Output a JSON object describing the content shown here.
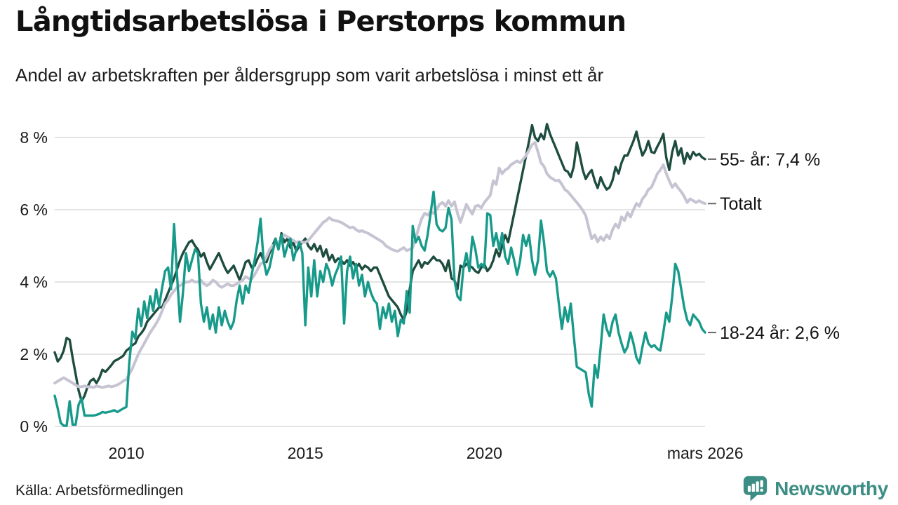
{
  "header": {
    "title": "Långtidsarbetslösa i Perstorps kommun",
    "subtitle": "Andel av arbetskraften per åldersgrupp som varit arbetslösa i minst ett år"
  },
  "footer": {
    "source": "Källa: Arbetsförmedlingen",
    "brand": "Newsworthy",
    "brand_color": "#3c8d84"
  },
  "chart_data": {
    "type": "line",
    "title": "Långtidsarbetslösa i Perstorps kommun",
    "subtitle": "Andel av arbetskraften per åldersgrupp som varit arbetslösa i minst ett år",
    "unit": "%",
    "frequency": "monthly",
    "start": "2008-01",
    "end": "2026-03",
    "ylim": [
      0,
      8.6
    ],
    "grid": "horizontal",
    "legend_position": "right-edge-labels",
    "style": {
      "grid_color": "#dcdcdc",
      "callout_dash_color": "#666666",
      "text_color": "#1a1a1a"
    },
    "y_ticks": [
      {
        "label": "0 %",
        "value": 0
      },
      {
        "label": "2 %",
        "value": 2
      },
      {
        "label": "4 %",
        "value": 4
      },
      {
        "label": "6 %",
        "value": 6
      },
      {
        "label": "8 %",
        "value": 8
      }
    ],
    "x_ticks": [
      {
        "label": "2010",
        "pos": 2010
      },
      {
        "label": "2015",
        "pos": 2015
      },
      {
        "label": "2020",
        "pos": 2020
      },
      {
        "label": "mars 2026",
        "pos": 2026.17
      }
    ],
    "series": [
      {
        "id": "55-ar",
        "name": "55- år",
        "label": "55- år: 7,4 %",
        "latest_value": "7,4 %",
        "color": "#1e4d40",
        "stroke_width": 3.4,
        "values": [
          2.05,
          1.8,
          1.9,
          2.1,
          2.45,
          2.4,
          1.9,
          1.45,
          1.0,
          0.7,
          0.85,
          1.1,
          1.26,
          1.32,
          1.2,
          1.35,
          1.57,
          1.51,
          1.6,
          1.7,
          1.81,
          1.85,
          1.9,
          1.96,
          2.1,
          2.16,
          2.25,
          2.3,
          2.49,
          2.58,
          2.7,
          2.9,
          3.0,
          3.1,
          3.2,
          3.3,
          3.3,
          3.5,
          3.7,
          3.9,
          4.1,
          4.35,
          4.6,
          4.8,
          4.95,
          5.1,
          5.15,
          5.0,
          4.9,
          4.7,
          4.8,
          4.55,
          4.35,
          4.5,
          4.65,
          4.8,
          4.6,
          4.4,
          4.25,
          4.35,
          4.45,
          4.25,
          4.05,
          4.3,
          4.55,
          4.6,
          4.4,
          4.45,
          4.65,
          4.8,
          4.6,
          4.55,
          4.8,
          5.0,
          5.2,
          4.9,
          5.35,
          5.1,
          5.2,
          4.95,
          5.1,
          4.85,
          5.0,
          5.1,
          5.2,
          5.0,
          4.9,
          5.05,
          4.85,
          5.0,
          4.7,
          4.9,
          4.6,
          4.75,
          4.55,
          4.65,
          4.6,
          4.5,
          4.6,
          4.45,
          4.55,
          4.4,
          4.5,
          4.35,
          4.45,
          4.4,
          4.3,
          4.4,
          4.4,
          4.2,
          4.0,
          3.8,
          3.6,
          3.5,
          3.4,
          3.3,
          3.1,
          2.95,
          3.2,
          3.8,
          4.3,
          4.45,
          4.6,
          4.4,
          4.55,
          4.5,
          4.6,
          4.7,
          4.6,
          4.6,
          4.5,
          4.3,
          4.6,
          4.1,
          4.05,
          3.8,
          4.45,
          4.4,
          4.5,
          4.45,
          4.4,
          4.3,
          4.25,
          4.4,
          4.5,
          4.3,
          4.4,
          4.6,
          4.9,
          4.7,
          5.0,
          5.3,
          5.1,
          5.5,
          5.9,
          6.3,
          6.7,
          7.1,
          7.5,
          7.9,
          8.34,
          8.0,
          7.9,
          8.1,
          7.95,
          8.37,
          8.1,
          7.9,
          7.7,
          7.5,
          7.3,
          7.1,
          7.05,
          6.9,
          7.2,
          7.86,
          7.5,
          7.1,
          6.85,
          7.0,
          7.1,
          6.8,
          6.6,
          6.9,
          6.7,
          6.56,
          6.62,
          6.82,
          7.18,
          7.0,
          7.3,
          7.5,
          7.5,
          7.7,
          7.9,
          8.16,
          7.8,
          7.5,
          7.65,
          7.9,
          7.6,
          7.57,
          7.75,
          7.9,
          8.1,
          7.44,
          7.1,
          7.6,
          7.9,
          7.5,
          7.7,
          7.28,
          7.57,
          7.4,
          7.6,
          7.5,
          7.55,
          7.45,
          7.4
        ]
      },
      {
        "id": "totalt",
        "name": "Totalt",
        "label": "Totalt",
        "latest_value": "6,2 %",
        "color": "#c6c4d2",
        "stroke_width": 4,
        "values": [
          1.2,
          1.25,
          1.3,
          1.35,
          1.3,
          1.25,
          1.2,
          1.15,
          1.1,
          1.1,
          1.12,
          1.1,
          1.1,
          1.08,
          1.12,
          1.1,
          1.08,
          1.1,
          1.12,
          1.1,
          1.12,
          1.15,
          1.2,
          1.26,
          1.3,
          1.45,
          1.6,
          1.8,
          2.0,
          2.15,
          2.3,
          2.45,
          2.6,
          2.72,
          2.85,
          3.0,
          3.2,
          3.4,
          3.5,
          3.65,
          3.75,
          3.85,
          3.9,
          3.95,
          4.0,
          4.0,
          4.05,
          4.0,
          4.0,
          4.05,
          3.95,
          3.9,
          3.95,
          4.05,
          4.0,
          3.9,
          3.85,
          3.9,
          3.95,
          3.9,
          3.9,
          3.95,
          4.0,
          4.05,
          4.15,
          4.1,
          4.08,
          4.2,
          4.35,
          4.5,
          4.55,
          4.7,
          4.9,
          5.0,
          5.05,
          5.1,
          5.2,
          5.3,
          5.25,
          5.2,
          5.15,
          5.1,
          5.12,
          5.1,
          5.1,
          5.15,
          5.25,
          5.35,
          5.45,
          5.55,
          5.65,
          5.7,
          5.78,
          5.72,
          5.7,
          5.68,
          5.65,
          5.6,
          5.55,
          5.5,
          5.52,
          5.45,
          5.4,
          5.42,
          5.38,
          5.35,
          5.3,
          5.25,
          5.2,
          5.15,
          5.1,
          5.0,
          4.95,
          4.9,
          4.87,
          4.85,
          4.9,
          4.95,
          4.87,
          4.9,
          4.95,
          5.2,
          5.5,
          5.75,
          5.9,
          5.85,
          5.95,
          5.9,
          6.0,
          6.15,
          6.2,
          6.1,
          6.25,
          6.1,
          6.22,
          5.9,
          5.65,
          5.9,
          6.15,
          6.0,
          5.88,
          6.1,
          6.12,
          6.05,
          6.2,
          6.3,
          6.4,
          6.8,
          6.7,
          7.15,
          7.0,
          7.1,
          7.15,
          7.25,
          7.3,
          7.35,
          7.3,
          7.4,
          7.5,
          7.65,
          7.8,
          7.86,
          7.6,
          7.3,
          7.2,
          7.0,
          6.9,
          6.85,
          6.8,
          6.82,
          6.7,
          6.56,
          6.5,
          6.4,
          6.3,
          6.2,
          6.1,
          5.98,
          5.84,
          5.5,
          5.2,
          5.3,
          5.11,
          5.25,
          5.15,
          5.3,
          5.2,
          5.45,
          5.6,
          5.5,
          5.8,
          5.7,
          5.92,
          5.8,
          6.0,
          6.17,
          6.1,
          6.3,
          6.4,
          6.56,
          6.62,
          6.8,
          7.0,
          7.1,
          7.24,
          7.0,
          6.8,
          6.62,
          6.72,
          6.6,
          6.5,
          6.37,
          6.2,
          6.3,
          6.25,
          6.2,
          6.25,
          6.2,
          6.17
        ]
      },
      {
        "id": "18-24-ar",
        "name": "18-24 år",
        "label": "18-24 år: 2,6 %",
        "latest_value": "2,6 %",
        "color": "#179a8a",
        "stroke_width": 3.4,
        "values": [
          0.85,
          0.5,
          0.1,
          0.02,
          0.02,
          0.7,
          0.05,
          0.05,
          0.6,
          0.78,
          0.3,
          0.3,
          0.3,
          0.3,
          0.32,
          0.35,
          0.4,
          0.38,
          0.4,
          0.42,
          0.45,
          0.4,
          0.45,
          0.5,
          0.54,
          1.77,
          2.62,
          2.43,
          3.26,
          2.78,
          3.46,
          3.0,
          3.6,
          3.2,
          3.79,
          3.32,
          3.84,
          4.3,
          4.4,
          3.8,
          5.6,
          4.2,
          2.9,
          3.7,
          4.8,
          4.3,
          4.6,
          4.9,
          4.8,
          3.4,
          2.9,
          3.3,
          2.7,
          3.1,
          2.6,
          3.3,
          2.8,
          3.2,
          2.9,
          2.7,
          2.9,
          3.5,
          3.9,
          3.4,
          3.9,
          3.7,
          4.2,
          4.6,
          5.1,
          5.75,
          4.6,
          4.2,
          4.4,
          4.8,
          5.2,
          4.9,
          5.3,
          4.7,
          5.0,
          5.2,
          4.6,
          4.9,
          5.1,
          4.8,
          2.8,
          4.4,
          3.6,
          4.6,
          3.6,
          4.3,
          4.0,
          4.5,
          4.3,
          3.9,
          4.2,
          4.4,
          4.7,
          2.85,
          4.3,
          4.7,
          4.1,
          4.5,
          3.9,
          4.2,
          3.6,
          4.0,
          3.7,
          3.5,
          3.4,
          2.7,
          3.3,
          3.0,
          3.4,
          2.9,
          3.2,
          2.5,
          2.95,
          2.85,
          3.75,
          3.15,
          5.55,
          5.1,
          5.25,
          5.0,
          4.87,
          5.3,
          5.9,
          6.5,
          5.6,
          5.45,
          5.4,
          5.5,
          6.05,
          5.73,
          4.05,
          3.6,
          3.5,
          4.4,
          4.8,
          4.3,
          5.25,
          4.9,
          4.4,
          4.5,
          4.4,
          5.9,
          5.85,
          5.0,
          5.35,
          4.9,
          5.35,
          4.7,
          4.5,
          4.95,
          4.6,
          4.2,
          4.6,
          5.3,
          5.0,
          5.3,
          4.6,
          4.2,
          4.6,
          5.7,
          5.1,
          4.3,
          4.15,
          4.3,
          4.1,
          3.4,
          2.7,
          3.3,
          2.9,
          3.4,
          2.5,
          1.65,
          1.6,
          1.55,
          1.5,
          0.9,
          0.55,
          1.7,
          1.35,
          2.2,
          3.1,
          2.7,
          2.5,
          2.9,
          3.1,
          2.6,
          2.3,
          2.05,
          2.2,
          2.6,
          2.3,
          1.9,
          1.75,
          2.2,
          2.6,
          2.3,
          2.2,
          2.25,
          2.15,
          2.1,
          2.6,
          3.15,
          2.9,
          3.6,
          4.5,
          4.3,
          3.8,
          3.3,
          2.95,
          2.8,
          3.1,
          3.0,
          2.9,
          2.7,
          2.6
        ]
      }
    ]
  }
}
